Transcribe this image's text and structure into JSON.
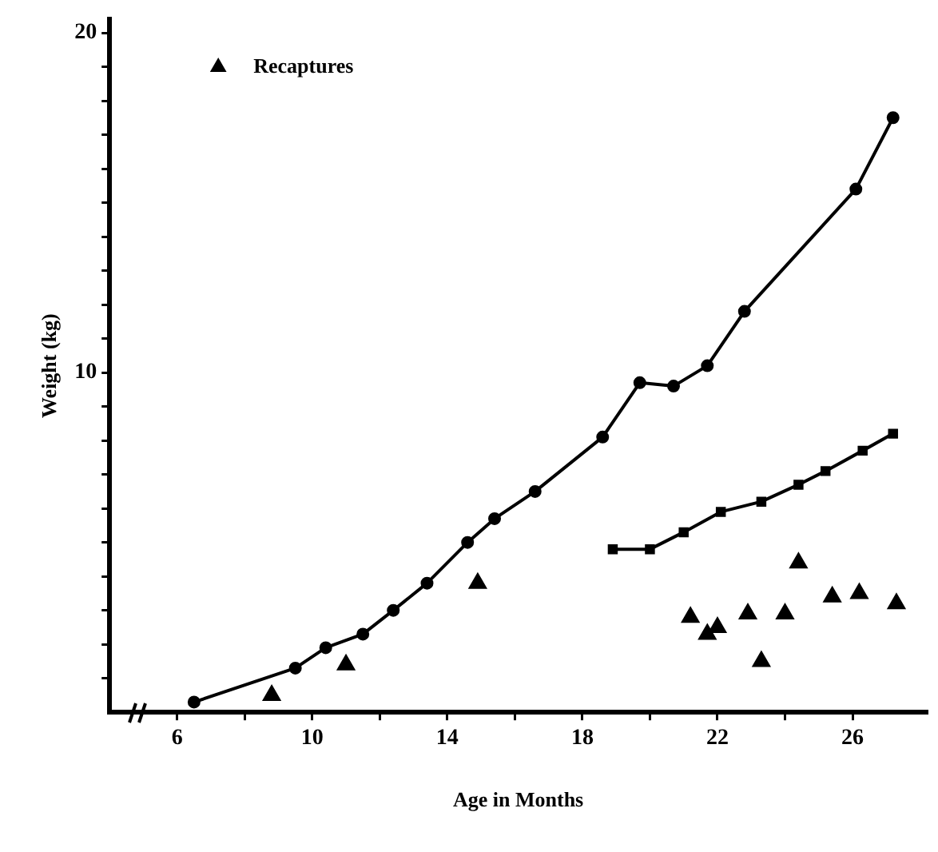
{
  "chart_data": {
    "type": "line",
    "xlabel": "Age in Months",
    "ylabel": "Weight (kg)",
    "xlim": [
      4,
      28.2
    ],
    "ylim": [
      0,
      20.4
    ],
    "xticks": [
      {
        "value": 6,
        "label": "6"
      },
      {
        "value": 8,
        "label": null
      },
      {
        "value": 10,
        "label": "10"
      },
      {
        "value": 12,
        "label": null
      },
      {
        "value": 14,
        "label": "14"
      },
      {
        "value": 16,
        "label": null
      },
      {
        "value": 18,
        "label": "18"
      },
      {
        "value": 20,
        "label": null
      },
      {
        "value": 22,
        "label": "22"
      },
      {
        "value": 24,
        "label": null
      },
      {
        "value": 26,
        "label": "26"
      }
    ],
    "yticks": [
      {
        "value": 1,
        "label": null
      },
      {
        "value": 2,
        "label": null
      },
      {
        "value": 3,
        "label": null
      },
      {
        "value": 4,
        "label": null
      },
      {
        "value": 5,
        "label": null
      },
      {
        "value": 6,
        "label": null
      },
      {
        "value": 7,
        "label": null
      },
      {
        "value": 8,
        "label": null
      },
      {
        "value": 9,
        "label": null
      },
      10,
      {
        "value": 11,
        "label": null
      },
      {
        "value": 12,
        "label": null
      },
      {
        "value": 13,
        "label": null
      },
      {
        "value": 14,
        "label": null
      },
      {
        "value": 15,
        "label": null
      },
      {
        "value": 16,
        "label": null
      },
      {
        "value": 17,
        "label": null
      },
      {
        "value": 18,
        "label": null
      },
      {
        "value": 19,
        "label": null
      },
      20
    ],
    "grid": false,
    "legend": "top left",
    "line_style": "solid",
    "series": [
      {
        "type": "line",
        "marker": "circle",
        "color": "#000000",
        "x": [
          6.5,
          9.5,
          10.4,
          11.5,
          12.4,
          13.4,
          14.6,
          15.4,
          16.6,
          18.6,
          19.7,
          20.7,
          21.7,
          22.8,
          26.1,
          27.2
        ],
        "values": [
          0.3,
          1.3,
          1.9,
          2.3,
          3.0,
          3.8,
          5.0,
          5.7,
          6.5,
          8.1,
          9.7,
          9.6,
          10.2,
          11.8,
          15.4,
          17.5
        ]
      },
      {
        "type": "line",
        "marker": "square",
        "color": "#000000",
        "x": [
          18.9,
          20.0,
          21.0,
          22.1,
          23.3,
          24.4,
          25.2,
          26.3,
          27.2
        ],
        "values": [
          4.8,
          4.8,
          5.3,
          5.9,
          6.2,
          6.7,
          7.1,
          7.7,
          8.2
        ]
      },
      {
        "type": "scatter",
        "marker": "triangle",
        "name": "Recaptures",
        "color": "#000000",
        "x": [
          8.8,
          11.0,
          14.9,
          21.2,
          21.7,
          22.0,
          22.9,
          23.3,
          24.0,
          24.4,
          25.4,
          26.2,
          27.3
        ],
        "values": [
          0.5,
          1.4,
          3.8,
          2.8,
          2.3,
          2.5,
          2.9,
          1.5,
          2.9,
          4.4,
          3.4,
          3.5,
          3.2
        ]
      }
    ]
  }
}
